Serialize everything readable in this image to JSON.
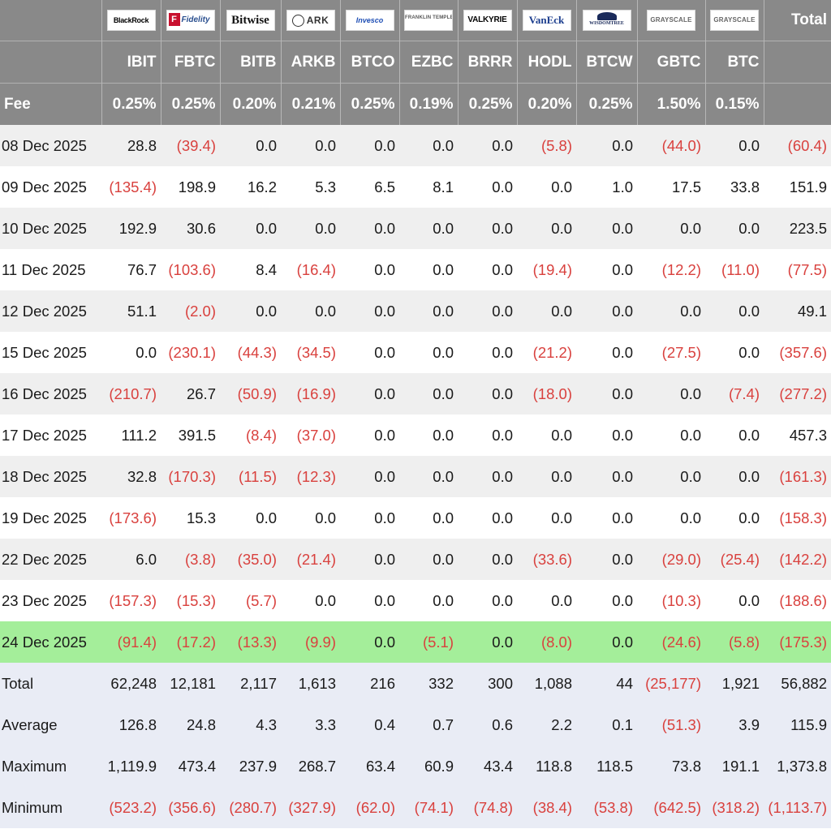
{
  "header": {
    "logos": [
      {
        "name": "blackrock-logo",
        "text": "BlackRock"
      },
      {
        "name": "fidelity-logo",
        "text": "Fidelity",
        "mark": "F"
      },
      {
        "name": "bitwise-logo",
        "text": "Bitwise"
      },
      {
        "name": "ark-logo",
        "text": "ARK"
      },
      {
        "name": "invesco-logo",
        "text": "Invesco"
      },
      {
        "name": "franklin-templeton-logo",
        "text": "FRANKLIN TEMPLETON"
      },
      {
        "name": "valkyrie-logo",
        "text": "VALKYRIE"
      },
      {
        "name": "vaneck-logo",
        "text": "VanEck"
      },
      {
        "name": "wisdomtree-logo",
        "text": "WISDOMTREE"
      },
      {
        "name": "grayscale-logo",
        "text": "GRAYSCALE"
      },
      {
        "name": "grayscale-logo",
        "text": "GRAYSCALE"
      }
    ],
    "total_label": "Total",
    "fee_label": "Fee",
    "tickers": [
      "IBIT",
      "FBTC",
      "BITB",
      "ARKB",
      "BTCO",
      "EZBC",
      "BRRR",
      "HODL",
      "BTCW",
      "GBTC",
      "BTC"
    ],
    "fees": [
      "0.25%",
      "0.25%",
      "0.20%",
      "0.21%",
      "0.25%",
      "0.19%",
      "0.25%",
      "0.20%",
      "0.25%",
      "1.50%",
      "0.15%"
    ]
  },
  "rows": [
    {
      "date": "08 Dec 2025",
      "values": [
        "28.8",
        "(39.4)",
        "0.0",
        "0.0",
        "0.0",
        "0.0",
        "0.0",
        "(5.8)",
        "0.0",
        "(44.0)",
        "0.0"
      ],
      "total": "(60.4)"
    },
    {
      "date": "09 Dec 2025",
      "values": [
        "(135.4)",
        "198.9",
        "16.2",
        "5.3",
        "6.5",
        "8.1",
        "0.0",
        "0.0",
        "1.0",
        "17.5",
        "33.8"
      ],
      "total": "151.9"
    },
    {
      "date": "10 Dec 2025",
      "values": [
        "192.9",
        "30.6",
        "0.0",
        "0.0",
        "0.0",
        "0.0",
        "0.0",
        "0.0",
        "0.0",
        "0.0",
        "0.0"
      ],
      "total": "223.5"
    },
    {
      "date": "11 Dec 2025",
      "values": [
        "76.7",
        "(103.6)",
        "8.4",
        "(16.4)",
        "0.0",
        "0.0",
        "0.0",
        "(19.4)",
        "0.0",
        "(12.2)",
        "(11.0)"
      ],
      "total": "(77.5)"
    },
    {
      "date": "12 Dec 2025",
      "values": [
        "51.1",
        "(2.0)",
        "0.0",
        "0.0",
        "0.0",
        "0.0",
        "0.0",
        "0.0",
        "0.0",
        "0.0",
        "0.0"
      ],
      "total": "49.1"
    },
    {
      "date": "15 Dec 2025",
      "values": [
        "0.0",
        "(230.1)",
        "(44.3)",
        "(34.5)",
        "0.0",
        "0.0",
        "0.0",
        "(21.2)",
        "0.0",
        "(27.5)",
        "0.0"
      ],
      "total": "(357.6)"
    },
    {
      "date": "16 Dec 2025",
      "values": [
        "(210.7)",
        "26.7",
        "(50.9)",
        "(16.9)",
        "0.0",
        "0.0",
        "0.0",
        "(18.0)",
        "0.0",
        "0.0",
        "(7.4)"
      ],
      "total": "(277.2)"
    },
    {
      "date": "17 Dec 2025",
      "values": [
        "111.2",
        "391.5",
        "(8.4)",
        "(37.0)",
        "0.0",
        "0.0",
        "0.0",
        "0.0",
        "0.0",
        "0.0",
        "0.0"
      ],
      "total": "457.3"
    },
    {
      "date": "18 Dec 2025",
      "values": [
        "32.8",
        "(170.3)",
        "(11.5)",
        "(12.3)",
        "0.0",
        "0.0",
        "0.0",
        "0.0",
        "0.0",
        "0.0",
        "0.0"
      ],
      "total": "(161.3)"
    },
    {
      "date": "19 Dec 2025",
      "values": [
        "(173.6)",
        "15.3",
        "0.0",
        "0.0",
        "0.0",
        "0.0",
        "0.0",
        "0.0",
        "0.0",
        "0.0",
        "0.0"
      ],
      "total": "(158.3)"
    },
    {
      "date": "22 Dec 2025",
      "values": [
        "6.0",
        "(3.8)",
        "(35.0)",
        "(21.4)",
        "0.0",
        "0.0",
        "0.0",
        "(33.6)",
        "0.0",
        "(29.0)",
        "(25.4)"
      ],
      "total": "(142.2)"
    },
    {
      "date": "23 Dec 2025",
      "values": [
        "(157.3)",
        "(15.3)",
        "(5.7)",
        "0.0",
        "0.0",
        "0.0",
        "0.0",
        "0.0",
        "0.0",
        "(10.3)",
        "0.0"
      ],
      "total": "(188.6)"
    },
    {
      "date": "24 Dec 2025",
      "values": [
        "(91.4)",
        "(17.2)",
        "(13.3)",
        "(9.9)",
        "0.0",
        "(5.1)",
        "0.0",
        "(8.0)",
        "0.0",
        "(24.6)",
        "(5.8)"
      ],
      "total": "(175.3)",
      "highlight": true
    }
  ],
  "summary": [
    {
      "label": "Total",
      "values": [
        "62,248",
        "12,181",
        "2,117",
        "1,613",
        "216",
        "332",
        "300",
        "1,088",
        "44",
        "(25,177)",
        "1,921"
      ],
      "total": "56,882"
    },
    {
      "label": "Average",
      "values": [
        "126.8",
        "24.8",
        "4.3",
        "3.3",
        "0.4",
        "0.7",
        "0.6",
        "2.2",
        "0.1",
        "(51.3)",
        "3.9"
      ],
      "total": "115.9"
    },
    {
      "label": "Maximum",
      "values": [
        "1,119.9",
        "473.4",
        "237.9",
        "268.7",
        "63.4",
        "60.9",
        "43.4",
        "118.8",
        "118.5",
        "73.8",
        "191.1"
      ],
      "total": "1,373.8"
    },
    {
      "label": "Minimum",
      "values": [
        "(523.2)",
        "(356.6)",
        "(280.7)",
        "(327.9)",
        "(62.0)",
        "(74.1)",
        "(74.8)",
        "(38.4)",
        "(53.8)",
        "(642.5)",
        "(318.2)"
      ],
      "total": "(1,113.7)"
    }
  ],
  "colors": {
    "negative": "#d9413e",
    "header_bg": "#898989",
    "highlight_bg": "#a4ee9a",
    "summary_bg": "#e9ecf5"
  }
}
